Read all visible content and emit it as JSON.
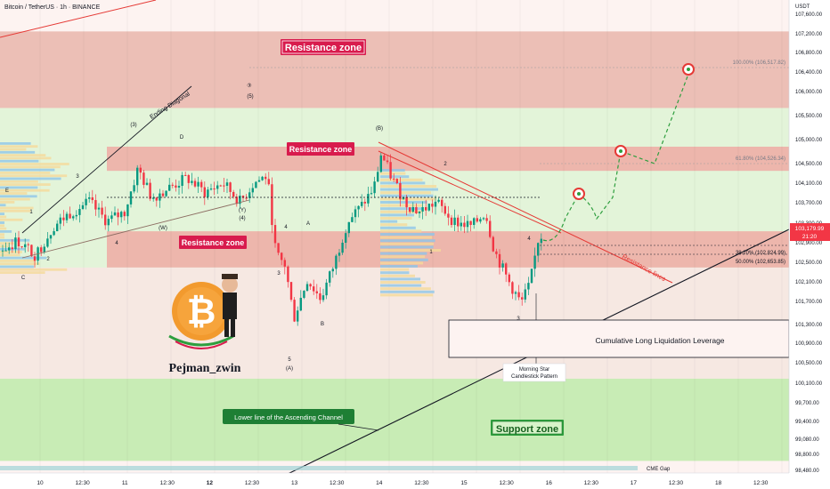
{
  "header": {
    "symbol_line": "Bitcoin / TetherUS · 1h · BINANCE"
  },
  "price_axis": {
    "currency": "USDT",
    "ticks": [
      "107,600.00",
      "107,200.00",
      "106,800.00",
      "106,400.00",
      "106,000.00",
      "105,500.00",
      "105,000.00",
      "104,500.00",
      "104,100.00",
      "103,700.00",
      "103,300.00",
      "102,900.00",
      "102,500.00",
      "102,100.00",
      "101,700.00",
      "101,300.00",
      "100,900.00",
      "100,500.00",
      "100,100.00",
      "99,700.00",
      "99,400.00",
      "99,080.00",
      "98,800.00",
      "98,480.00"
    ],
    "last_price": "103,179.99",
    "countdown": "21:20",
    "last_price_color": "#f23645"
  },
  "time_axis": {
    "ticks": [
      "10",
      "12:30",
      "11",
      "12:30",
      "12",
      "12:30",
      "13",
      "12:30",
      "14",
      "12:30",
      "15",
      "12:30",
      "16",
      "12:30",
      "17",
      "12:30",
      "18",
      "12:30"
    ]
  },
  "zones": {
    "resistance_top": "Resistance zone",
    "resistance_mid": "Resistance zone",
    "resistance_low": "Resistance zone",
    "support": "Support zone",
    "resistance_color": "#f7b6b1",
    "support_color": "#d7f3c9"
  },
  "fib_levels": [
    {
      "label": "100.00% (106,517.82)"
    },
    {
      "label": "61.80% (104,526.34)"
    },
    {
      "label": "38.20% (102,824.99)"
    },
    {
      "label": "50.00% (102,653.85)"
    }
  ],
  "annotations": {
    "ending_diagonal": "Ending Diagonal",
    "resistance_lines": "Resistance lines",
    "lower_channel_line": "Lower line of the Ascending Channel",
    "cumulative_box": "Cumulative Long Liquidation Leverage",
    "morning_star_1": "Morning Star",
    "morning_star_2": "Candlestick Pattern",
    "cme_gap": "CME Gap",
    "author": "Pejman_zwin"
  },
  "wave_labels": [
    "(3)",
    "(5)",
    "(4)",
    "(Y)",
    "(W)",
    "(B)",
    "(C)",
    "(A)",
    "1",
    "2",
    "3",
    "4",
    "5",
    "A",
    "B",
    "C",
    "D",
    "E",
    "③",
    "④"
  ],
  "chart_data": {
    "type": "candlestick",
    "title": "Bitcoin / TetherUS · 1h · BINANCE",
    "ylim": [
      98300,
      107900
    ],
    "last_price": 103179.99,
    "resistance_zones": [
      [
        105850,
        107250
      ],
      [
        104550,
        105050
      ],
      [
        102550,
        103300
      ]
    ],
    "support_zone": [
      98550,
      100250
    ],
    "fib_retracements": [
      {
        "level": "100.00%",
        "price": 106517.82
      },
      {
        "level": "61.80%",
        "price": 104526.34
      },
      {
        "level": "38.20%",
        "price": 102824.99
      },
      {
        "level": "50.00%",
        "price": 102653.85
      }
    ],
    "projected_targets": [
      104050,
      104550,
      106450
    ]
  }
}
